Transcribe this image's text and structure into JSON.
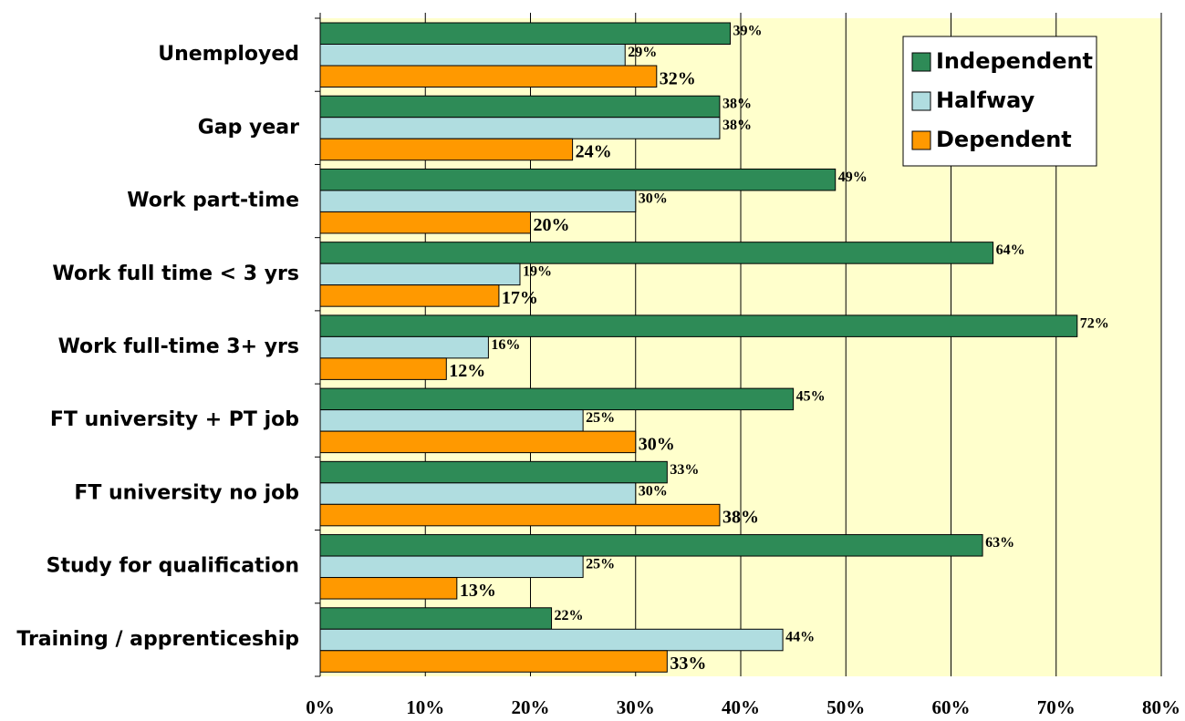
{
  "chart_data": {
    "type": "barh",
    "categories": [
      "Unemployed",
      "Gap year",
      "Work part-time",
      "Work full time < 3 yrs",
      "Work full-time 3+ yrs",
      "FT university + PT job",
      "FT university no job",
      "Study for qualification",
      "Training / apprenticeship"
    ],
    "series": [
      {
        "name": "Independent",
        "color": "#2e8b57",
        "values": [
          39,
          38,
          49,
          64,
          72,
          45,
          33,
          63,
          22
        ],
        "value_labels": [
          "39%",
          "38%",
          "49%",
          "64%",
          "72%",
          "45%",
          "33%",
          "63%",
          "22%"
        ]
      },
      {
        "name": "Halfway",
        "color": "#b0dde0",
        "values": [
          29,
          38,
          30,
          19,
          16,
          25,
          30,
          25,
          44
        ],
        "value_labels": [
          "29%",
          "38%",
          "30%",
          "19%",
          "16%",
          "25%",
          "30%",
          "25%",
          "44%"
        ]
      },
      {
        "name": "Dependent",
        "color": "#ff9900",
        "values": [
          32,
          24,
          20,
          17,
          12,
          30,
          38,
          13,
          33
        ],
        "value_labels": [
          "32%",
          "24%",
          "20%",
          "17%",
          "12%",
          "30%",
          "38%",
          "13%",
          "33%"
        ]
      }
    ],
    "xlim": [
      0,
      80
    ],
    "xticks": [
      {
        "value": 0,
        "label": "0%"
      },
      {
        "value": 10,
        "label": "10%"
      },
      {
        "value": 20,
        "label": "20%"
      },
      {
        "value": 30,
        "label": "30%"
      },
      {
        "value": 40,
        "label": "40%"
      },
      {
        "value": 50,
        "label": "50%"
      },
      {
        "value": 60,
        "label": "60%"
      },
      {
        "value": 70,
        "label": "70%"
      },
      {
        "value": 80,
        "label": "80%"
      }
    ],
    "grid": true,
    "legend": "upper right",
    "plot_background": "#ffffcc"
  }
}
